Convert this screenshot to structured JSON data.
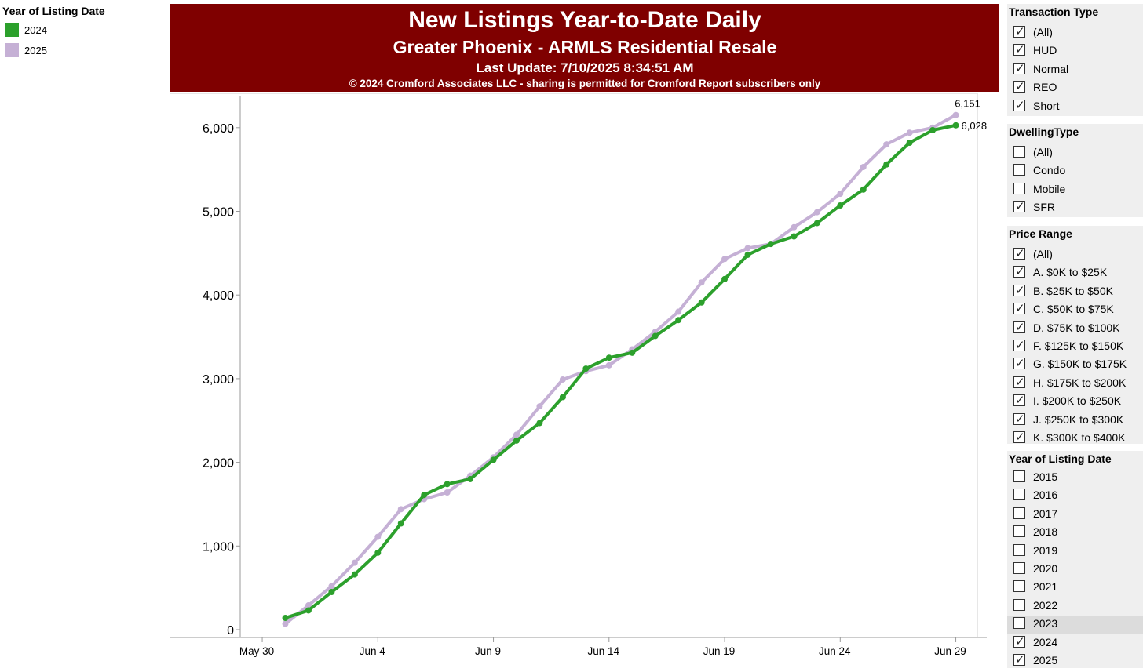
{
  "legend": {
    "title": "Year of Listing Date",
    "items": [
      {
        "label": "2024",
        "color": "#2ca02c"
      },
      {
        "label": "2025",
        "color": "#c5b0d5"
      }
    ]
  },
  "header": {
    "title": "New Listings Year-to-Date Daily",
    "subtitle": "Greater Phoenix - ARMLS Residential Resale",
    "updated": "Last Update: 7/10/2025 8:34:51 AM",
    "copyright": "© 2024 Cromford Associates LLC - sharing is permitted for Cromford Report subscribers only"
  },
  "filters": {
    "transaction_type": {
      "title": "Transaction Type",
      "options": [
        {
          "label": "(All)",
          "checked": true
        },
        {
          "label": "HUD",
          "checked": true
        },
        {
          "label": "Normal",
          "checked": true
        },
        {
          "label": "REO",
          "checked": true
        },
        {
          "label": "Short",
          "checked": true
        }
      ]
    },
    "dwelling_type": {
      "title": "DwellingType",
      "options": [
        {
          "label": "(All)",
          "checked": false
        },
        {
          "label": "Condo",
          "checked": false
        },
        {
          "label": "Mobile",
          "checked": false
        },
        {
          "label": "SFR",
          "checked": true
        }
      ]
    },
    "price_range": {
      "title": "Price Range",
      "options": [
        {
          "label": "(All)",
          "checked": true
        },
        {
          "label": "A. $0K to $25K",
          "checked": true
        },
        {
          "label": "B. $25K to $50K",
          "checked": true
        },
        {
          "label": "C. $50K to $75K",
          "checked": true
        },
        {
          "label": "D. $75K to $100K",
          "checked": true
        },
        {
          "label": "F. $125K to $150K",
          "checked": true
        },
        {
          "label": "G. $150K to $175K",
          "checked": true
        },
        {
          "label": "H. $175K to $200K",
          "checked": true
        },
        {
          "label": "I. $200K to $250K",
          "checked": true
        },
        {
          "label": "J. $250K to $300K",
          "checked": true
        },
        {
          "label": "K. $300K to $400K",
          "checked": true
        }
      ]
    },
    "listing_year": {
      "title": "Year of Listing Date",
      "options": [
        {
          "label": "2015",
          "checked": false
        },
        {
          "label": "2016",
          "checked": false
        },
        {
          "label": "2017",
          "checked": false
        },
        {
          "label": "2018",
          "checked": false
        },
        {
          "label": "2019",
          "checked": false
        },
        {
          "label": "2020",
          "checked": false
        },
        {
          "label": "2021",
          "checked": false
        },
        {
          "label": "2022",
          "checked": false
        },
        {
          "label": "2023",
          "checked": false
        },
        {
          "label": "2024",
          "checked": true
        },
        {
          "label": "2025",
          "checked": true
        }
      ]
    }
  },
  "chart_data": {
    "type": "line",
    "title": "New Listings Year-to-Date Daily",
    "x": [
      "May 31",
      "Jun 1",
      "Jun 2",
      "Jun 3",
      "Jun 4",
      "Jun 5",
      "Jun 6",
      "Jun 7",
      "Jun 8",
      "Jun 9",
      "Jun 10",
      "Jun 11",
      "Jun 12",
      "Jun 13",
      "Jun 14",
      "Jun 15",
      "Jun 16",
      "Jun 17",
      "Jun 18",
      "Jun 19",
      "Jun 20",
      "Jun 21",
      "Jun 22",
      "Jun 23",
      "Jun 24",
      "Jun 25",
      "Jun 26",
      "Jun 27",
      "Jun 28",
      "Jun 29",
      "Jun 30"
    ],
    "x_ticks": [
      "May 30",
      "Jun 4",
      "Jun 9",
      "Jun 14",
      "Jun 19",
      "Jun 24",
      "Jun 29"
    ],
    "y_ticks": [
      "0",
      "1,000",
      "2,000",
      "3,000",
      "4,000",
      "5,000",
      "6,000"
    ],
    "ylim": [
      0,
      6500
    ],
    "grid": false,
    "series": [
      {
        "name": "2024",
        "color": "#2ca02c",
        "values": [
          140,
          230,
          450,
          660,
          920,
          1270,
          1610,
          1740,
          1800,
          2030,
          2260,
          2470,
          2780,
          3120,
          3250,
          3310,
          3510,
          3700,
          3910,
          4190,
          4480,
          4610,
          4700,
          4860,
          5070,
          5260,
          5560,
          5820,
          5970,
          6028,
          null
        ],
        "end_label": "6,028"
      },
      {
        "name": "2025",
        "color": "#c5b0d5",
        "values": [
          70,
          290,
          520,
          800,
          1110,
          1440,
          1560,
          1640,
          1840,
          2060,
          2330,
          2670,
          2990,
          3090,
          3160,
          3350,
          3560,
          3800,
          4150,
          4430,
          4560,
          4610,
          4810,
          4990,
          5210,
          5530,
          5800,
          5940,
          6000,
          6151,
          null
        ],
        "end_label": "6,151"
      }
    ]
  }
}
